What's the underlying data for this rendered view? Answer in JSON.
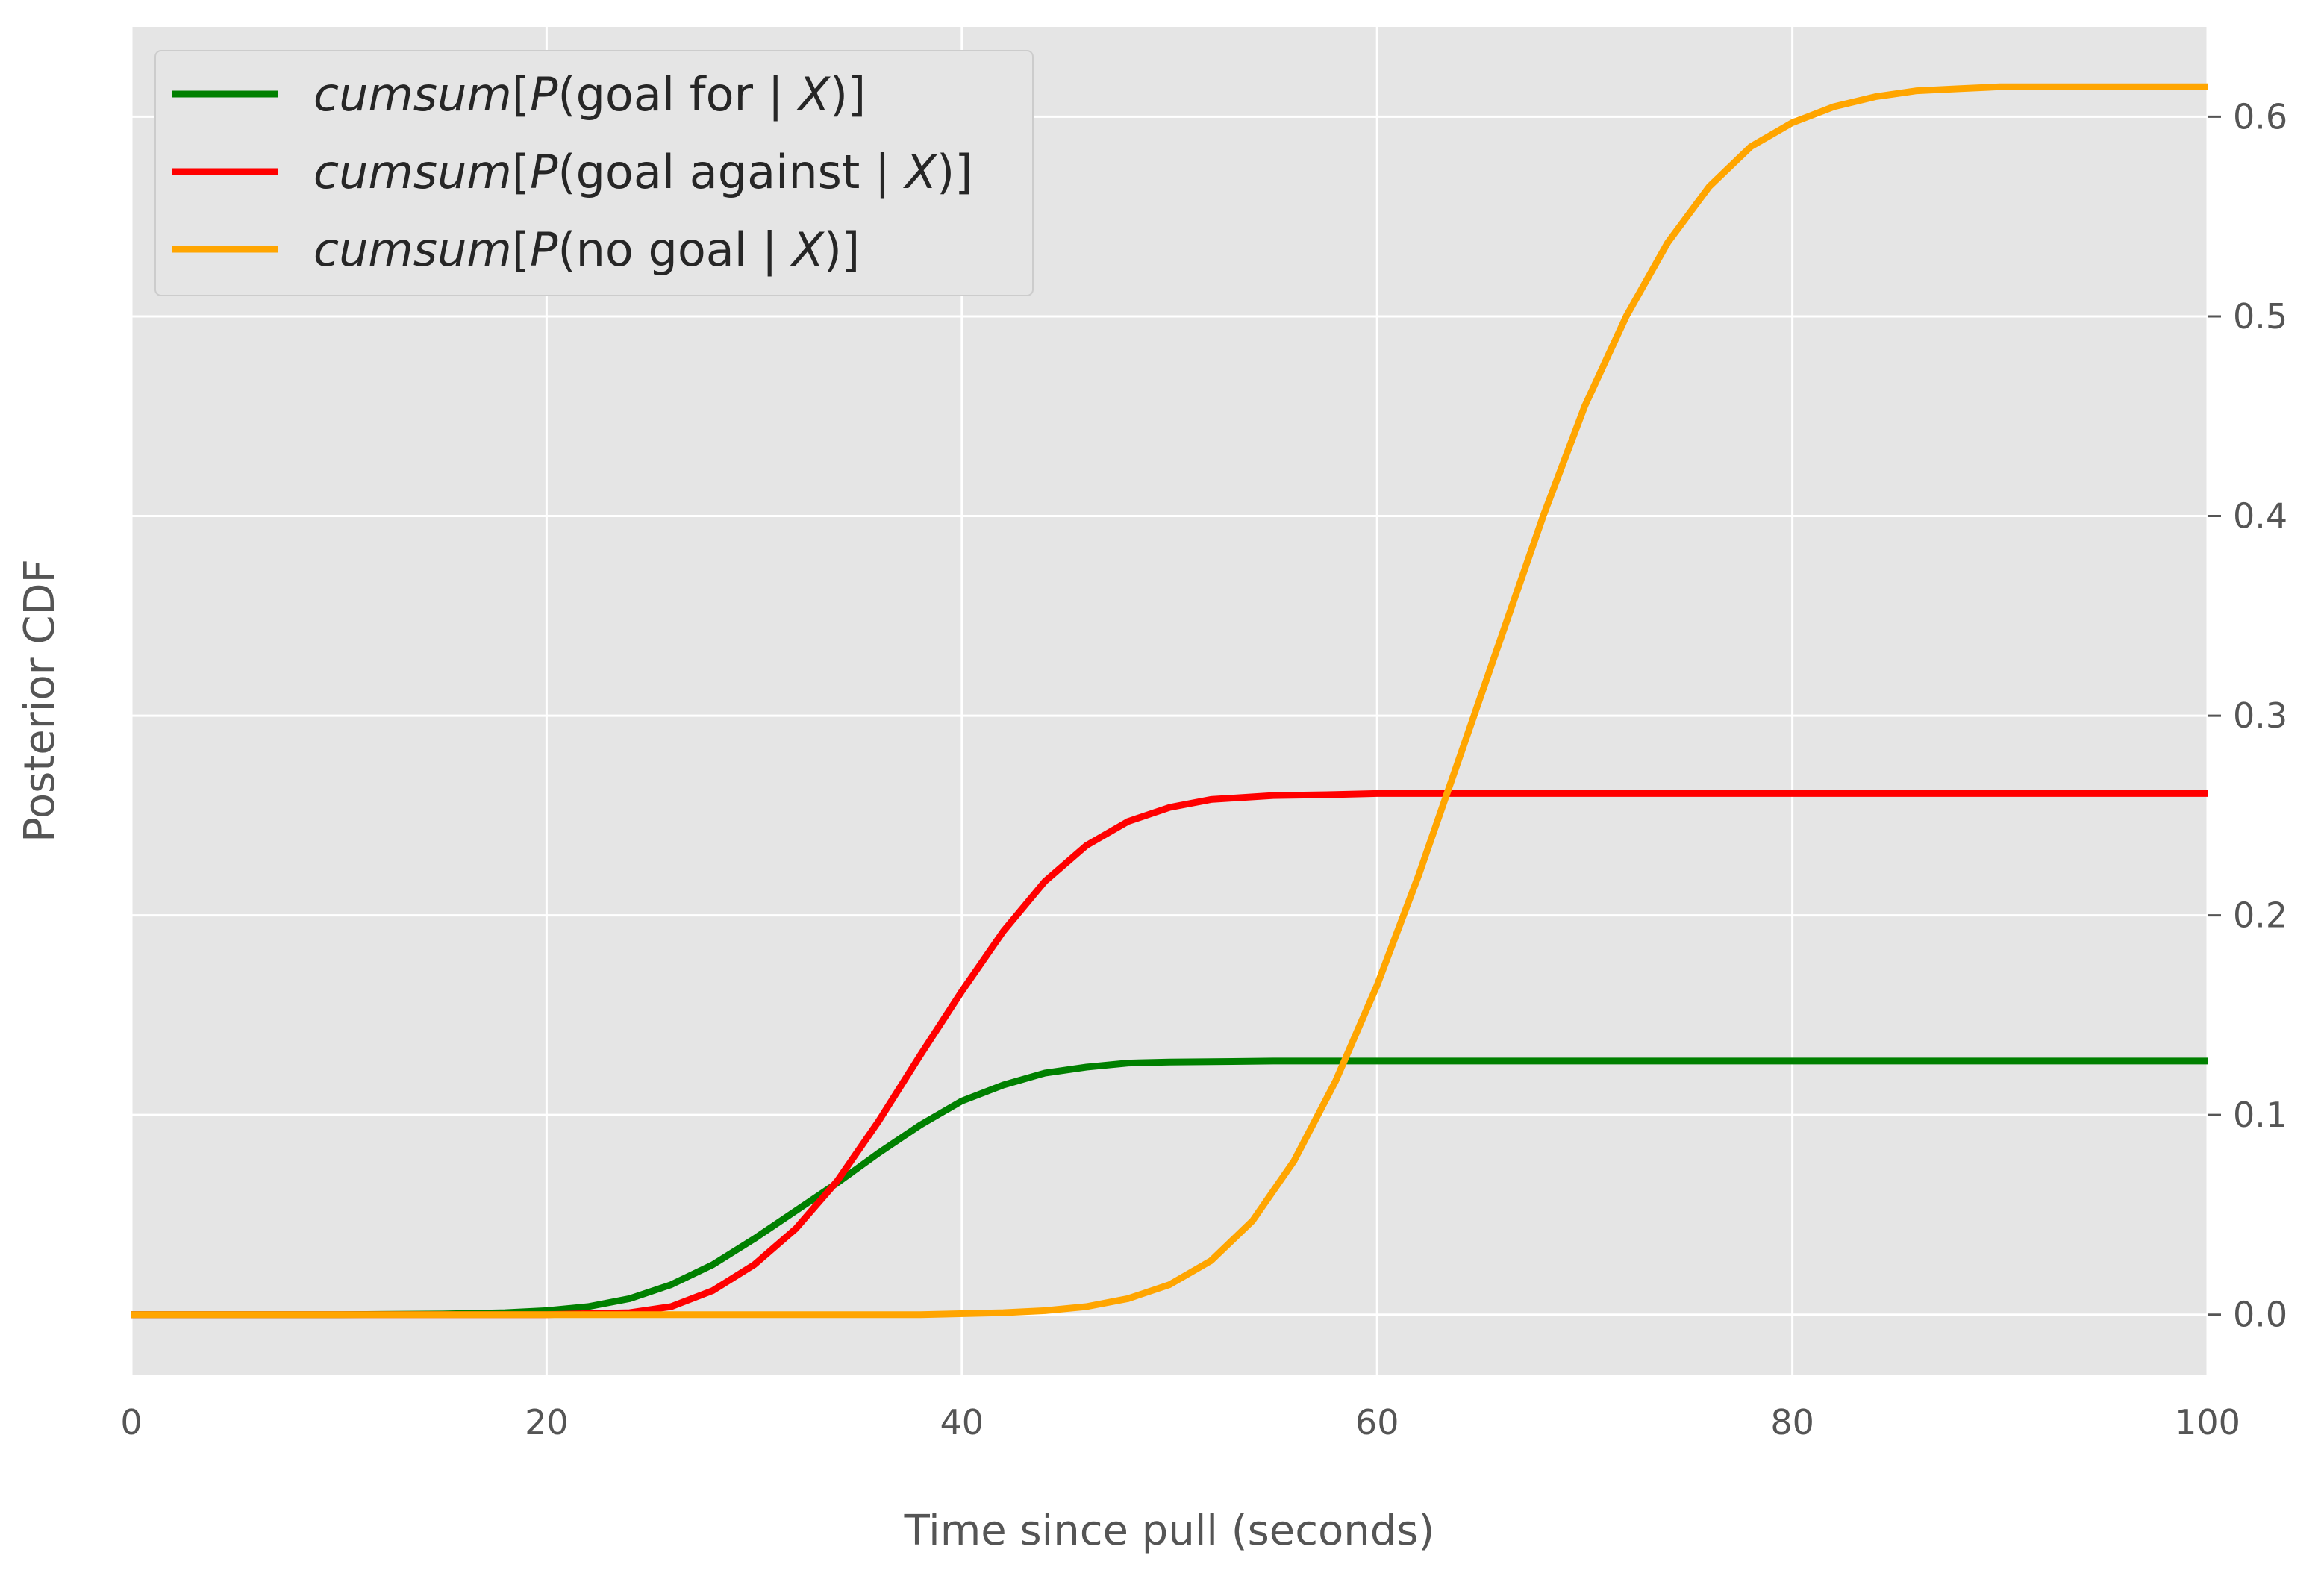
{
  "chart_data": {
    "type": "line",
    "xlabel": "Time since pull (seconds)",
    "ylabel": "Posterior CDF",
    "xlim": [
      0,
      100
    ],
    "ylim": [
      -0.03,
      0.645
    ],
    "x_ticks": [
      0,
      20,
      40,
      60,
      80,
      100
    ],
    "y_ticks": [
      0.0,
      0.1,
      0.2,
      0.3,
      0.4,
      0.5,
      0.6
    ],
    "x_tick_labels": [
      "0",
      "20",
      "40",
      "60",
      "80",
      "100"
    ],
    "y_tick_labels": [
      "0.0",
      "0.1",
      "0.2",
      "0.3",
      "0.4",
      "0.5",
      "0.6"
    ],
    "y_axis_side": "right",
    "grid": true,
    "legend_position": "top-left",
    "series": [
      {
        "name": "cumsum[P(goal for | X)]",
        "legend_parts": [
          {
            "text": "cumsum",
            "italic": true
          },
          {
            "text": "[",
            "italic": false
          },
          {
            "text": "P",
            "italic": true
          },
          {
            "text": "(goal for | ",
            "italic": false
          },
          {
            "text": "X",
            "italic": true
          },
          {
            "text": ")]",
            "italic": false
          }
        ],
        "color": "#008000",
        "x": [
          0,
          10,
          15,
          18,
          20,
          22,
          24,
          26,
          28,
          30,
          32,
          34,
          36,
          38,
          40,
          42,
          44,
          46,
          48,
          50,
          55,
          60,
          70,
          80,
          90,
          100
        ],
        "y": [
          0.0,
          0.0,
          0.0003,
          0.001,
          0.002,
          0.004,
          0.008,
          0.015,
          0.025,
          0.038,
          0.052,
          0.066,
          0.081,
          0.095,
          0.107,
          0.115,
          0.121,
          0.124,
          0.126,
          0.1265,
          0.127,
          0.127,
          0.127,
          0.127,
          0.127,
          0.127
        ]
      },
      {
        "name": "cumsum[P(goal against | X)]",
        "legend_parts": [
          {
            "text": "cumsum",
            "italic": true
          },
          {
            "text": "[",
            "italic": false
          },
          {
            "text": "P",
            "italic": true
          },
          {
            "text": "(goal against | ",
            "italic": false
          },
          {
            "text": "X",
            "italic": true
          },
          {
            "text": ")]",
            "italic": false
          }
        ],
        "color": "#ff0000",
        "x": [
          0,
          20,
          24,
          26,
          28,
          30,
          32,
          34,
          36,
          38,
          40,
          42,
          44,
          46,
          48,
          50,
          52,
          55,
          58,
          60,
          70,
          80,
          90,
          100
        ],
        "y": [
          0.0,
          0.0,
          0.001,
          0.004,
          0.012,
          0.025,
          0.043,
          0.067,
          0.097,
          0.13,
          0.162,
          0.192,
          0.217,
          0.235,
          0.247,
          0.254,
          0.258,
          0.26,
          0.2605,
          0.261,
          0.261,
          0.261,
          0.261,
          0.261
        ]
      },
      {
        "name": "cumsum[P(no goal | X)]",
        "legend_parts": [
          {
            "text": "cumsum",
            "italic": true
          },
          {
            "text": "[",
            "italic": false
          },
          {
            "text": "P",
            "italic": true
          },
          {
            "text": "(no goal | ",
            "italic": false
          },
          {
            "text": "X",
            "italic": true
          },
          {
            "text": ")]",
            "italic": false
          }
        ],
        "color": "#ffa500",
        "x": [
          0,
          30,
          38,
          42,
          44,
          46,
          48,
          50,
          52,
          54,
          56,
          58,
          60,
          62,
          64,
          66,
          68,
          70,
          72,
          74,
          76,
          78,
          80,
          82,
          84,
          86,
          88,
          90,
          95,
          100
        ],
        "y": [
          0.0,
          0.0,
          0.0,
          0.001,
          0.002,
          0.004,
          0.008,
          0.015,
          0.027,
          0.047,
          0.077,
          0.117,
          0.165,
          0.22,
          0.28,
          0.34,
          0.4,
          0.455,
          0.5,
          0.537,
          0.565,
          0.585,
          0.597,
          0.605,
          0.61,
          0.613,
          0.614,
          0.615,
          0.615,
          0.615
        ]
      }
    ]
  }
}
